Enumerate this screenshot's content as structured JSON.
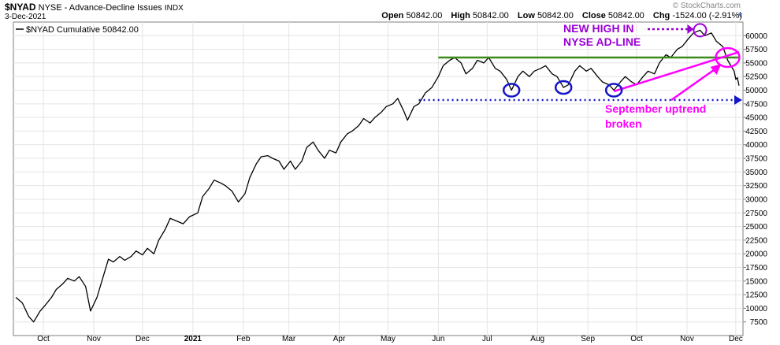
{
  "header": {
    "symbol": "$NYAD",
    "description": "NYSE - Advance-Decline Issues",
    "exchange": "INDX",
    "date": "3-Dec-2021",
    "open_label": "Open",
    "open_value": "50842.00",
    "high_label": "High",
    "high_value": "50842.00",
    "low_label": "Low",
    "low_value": "50842.00",
    "close_label": "Close",
    "close_value": "50842.00",
    "chg_label": "Chg",
    "chg_value": "-1524.00 (-2.91%)",
    "watermark": "© StockCharts.com"
  },
  "colors": {
    "price_line": "#000000",
    "resistance": "#3a8a1e",
    "support": "#1414c8",
    "annotation_magenta": "#ff00ff",
    "annotation_purple": "#9b00d6",
    "circle_blue": "#1414c8",
    "arrow_blue": "#1414c8"
  },
  "annotations": {
    "new_high_line1": "NEW HIGH IN",
    "new_high_line2": "NYSE AD-LINE",
    "uptrend_line1": "September uptrend",
    "uptrend_line2": "broken"
  },
  "chart_data": {
    "type": "line",
    "title": "$NYAD NYSE - Advance-Decline Issues INDX",
    "xlabel": "",
    "ylabel": "",
    "ylim": [
      5000,
      62500
    ],
    "grid": true,
    "legend_placement": "top-left",
    "y_ticks": [
      7500,
      10000,
      12500,
      15000,
      17500,
      20000,
      22500,
      25000,
      27500,
      30000,
      32500,
      35000,
      37500,
      40000,
      42500,
      45000,
      47500,
      50000,
      52500,
      55000,
      57500,
      60000
    ],
    "x_ticks": [
      {
        "label": "Oct",
        "date": "2020-10-01",
        "bold": false
      },
      {
        "label": "Nov",
        "date": "2020-11-01",
        "bold": false
      },
      {
        "label": "Dec",
        "date": "2020-12-01",
        "bold": false
      },
      {
        "label": "2021",
        "date": "2021-01-01",
        "bold": true
      },
      {
        "label": "Feb",
        "date": "2021-02-01",
        "bold": false
      },
      {
        "label": "Mar",
        "date": "2021-03-01",
        "bold": false
      },
      {
        "label": "Apr",
        "date": "2021-04-01",
        "bold": false
      },
      {
        "label": "May",
        "date": "2021-05-01",
        "bold": false
      },
      {
        "label": "Jun",
        "date": "2021-06-01",
        "bold": false
      },
      {
        "label": "Jul",
        "date": "2021-07-01",
        "bold": false
      },
      {
        "label": "Aug",
        "date": "2021-08-01",
        "bold": false
      },
      {
        "label": "Sep",
        "date": "2021-09-01",
        "bold": false
      },
      {
        "label": "Oct",
        "date": "2021-10-01",
        "bold": false
      },
      {
        "label": "Nov",
        "date": "2021-11-01",
        "bold": false
      },
      {
        "label": "Dec",
        "date": "2021-12-01",
        "bold": false
      }
    ],
    "series": [
      {
        "name": "$NYAD Cumulative 50842.00",
        "points": [
          [
            "2020-09-14",
            12000
          ],
          [
            "2020-09-18",
            11000
          ],
          [
            "2020-09-22",
            8500
          ],
          [
            "2020-09-25",
            7500
          ],
          [
            "2020-09-29",
            9500
          ],
          [
            "2020-10-02",
            10500
          ],
          [
            "2020-10-06",
            12000
          ],
          [
            "2020-10-09",
            13500
          ],
          [
            "2020-10-13",
            14500
          ],
          [
            "2020-10-16",
            15500
          ],
          [
            "2020-10-20",
            15000
          ],
          [
            "2020-10-23",
            15800
          ],
          [
            "2020-10-27",
            14000
          ],
          [
            "2020-10-30",
            9500
          ],
          [
            "2020-11-03",
            12000
          ],
          [
            "2020-11-06",
            15000
          ],
          [
            "2020-11-10",
            19000
          ],
          [
            "2020-11-13",
            18500
          ],
          [
            "2020-11-17",
            19500
          ],
          [
            "2020-11-20",
            18800
          ],
          [
            "2020-11-24",
            19500
          ],
          [
            "2020-11-27",
            20500
          ],
          [
            "2020-12-01",
            19800
          ],
          [
            "2020-12-04",
            21000
          ],
          [
            "2020-12-08",
            20000
          ],
          [
            "2020-12-11",
            22500
          ],
          [
            "2020-12-15",
            24500
          ],
          [
            "2020-12-18",
            26500
          ],
          [
            "2020-12-22",
            26000
          ],
          [
            "2020-12-26",
            25500
          ],
          [
            "2020-12-30",
            26800
          ],
          [
            "2021-01-04",
            27500
          ],
          [
            "2021-01-07",
            30500
          ],
          [
            "2021-01-11",
            32000
          ],
          [
            "2021-01-14",
            33500
          ],
          [
            "2021-01-18",
            33000
          ],
          [
            "2021-01-21",
            32500
          ],
          [
            "2021-01-25",
            31500
          ],
          [
            "2021-01-29",
            29500
          ],
          [
            "2021-02-02",
            31000
          ],
          [
            "2021-02-05",
            34000
          ],
          [
            "2021-02-09",
            36500
          ],
          [
            "2021-02-12",
            37800
          ],
          [
            "2021-02-16",
            38000
          ],
          [
            "2021-02-19",
            37500
          ],
          [
            "2021-02-23",
            37000
          ],
          [
            "2021-02-26",
            35500
          ],
          [
            "2021-03-02",
            37000
          ],
          [
            "2021-03-05",
            35500
          ],
          [
            "2021-03-09",
            37000
          ],
          [
            "2021-03-12",
            39500
          ],
          [
            "2021-03-16",
            40500
          ],
          [
            "2021-03-19",
            39000
          ],
          [
            "2021-03-23",
            37500
          ],
          [
            "2021-03-26",
            39000
          ],
          [
            "2021-03-30",
            38500
          ],
          [
            "2021-04-02",
            40500
          ],
          [
            "2021-04-06",
            42000
          ],
          [
            "2021-04-09",
            42500
          ],
          [
            "2021-04-13",
            43500
          ],
          [
            "2021-04-16",
            44800
          ],
          [
            "2021-04-20",
            44000
          ],
          [
            "2021-04-23",
            45000
          ],
          [
            "2021-04-27",
            46000
          ],
          [
            "2021-04-30",
            47000
          ],
          [
            "2021-05-04",
            47500
          ],
          [
            "2021-05-07",
            48500
          ],
          [
            "2021-05-11",
            46000
          ],
          [
            "2021-05-13",
            44500
          ],
          [
            "2021-05-17",
            47000
          ],
          [
            "2021-05-20",
            47500
          ],
          [
            "2021-05-24",
            49500
          ],
          [
            "2021-05-28",
            50500
          ],
          [
            "2021-06-01",
            52500
          ],
          [
            "2021-06-04",
            54500
          ],
          [
            "2021-06-08",
            55500
          ],
          [
            "2021-06-11",
            56000
          ],
          [
            "2021-06-15",
            55000
          ],
          [
            "2021-06-18",
            53000
          ],
          [
            "2021-06-22",
            54000
          ],
          [
            "2021-06-25",
            55500
          ],
          [
            "2021-06-29",
            55000
          ],
          [
            "2021-07-02",
            56000
          ],
          [
            "2021-07-06",
            54000
          ],
          [
            "2021-07-09",
            53500
          ],
          [
            "2021-07-13",
            52000
          ],
          [
            "2021-07-16",
            50000
          ],
          [
            "2021-07-20",
            52500
          ],
          [
            "2021-07-23",
            53500
          ],
          [
            "2021-07-27",
            52500
          ],
          [
            "2021-07-30",
            53500
          ],
          [
            "2021-08-03",
            54000
          ],
          [
            "2021-08-06",
            54500
          ],
          [
            "2021-08-10",
            53000
          ],
          [
            "2021-08-13",
            52500
          ],
          [
            "2021-08-17",
            50500
          ],
          [
            "2021-08-20",
            51000
          ],
          [
            "2021-08-24",
            53500
          ],
          [
            "2021-08-27",
            54500
          ],
          [
            "2021-08-31",
            53500
          ],
          [
            "2021-09-03",
            54000
          ],
          [
            "2021-09-07",
            52500
          ],
          [
            "2021-09-10",
            51500
          ],
          [
            "2021-09-14",
            51000
          ],
          [
            "2021-09-17",
            50000
          ],
          [
            "2021-09-21",
            51500
          ],
          [
            "2021-09-24",
            52500
          ],
          [
            "2021-09-28",
            51500
          ],
          [
            "2021-10-01",
            51000
          ],
          [
            "2021-10-05",
            52500
          ],
          [
            "2021-10-08",
            53500
          ],
          [
            "2021-10-12",
            53000
          ],
          [
            "2021-10-15",
            55000
          ],
          [
            "2021-10-19",
            56500
          ],
          [
            "2021-10-22",
            56000
          ],
          [
            "2021-10-26",
            57500
          ],
          [
            "2021-10-29",
            58000
          ],
          [
            "2021-11-02",
            59500
          ],
          [
            "2021-11-05",
            60500
          ],
          [
            "2021-11-09",
            61000
          ],
          [
            "2021-11-12",
            60000
          ],
          [
            "2021-11-16",
            60500
          ],
          [
            "2021-11-19",
            59000
          ],
          [
            "2021-11-23",
            58000
          ],
          [
            "2021-11-26",
            55500
          ],
          [
            "2021-11-30",
            53500
          ],
          [
            "2021-12-01",
            52000
          ],
          [
            "2021-12-02",
            52300
          ],
          [
            "2021-12-03",
            50842
          ]
        ]
      }
    ],
    "overlays": [
      {
        "kind": "resistance-line",
        "from": [
          "2021-06-01",
          56000
        ],
        "to": [
          "2021-12-03",
          56000
        ]
      },
      {
        "kind": "support-line",
        "from": [
          "2021-05-20",
          48200
        ],
        "to": [
          "2021-12-03",
          48200
        ]
      },
      {
        "kind": "uptrend-line",
        "from": [
          "2021-09-17",
          49800
        ],
        "to": [
          "2021-12-03",
          57000
        ]
      }
    ]
  }
}
